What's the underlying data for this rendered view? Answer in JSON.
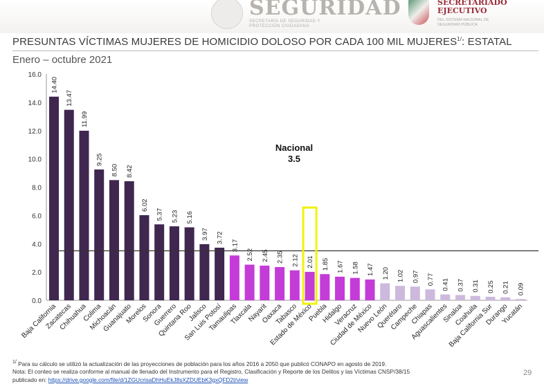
{
  "header": {
    "logo_left": "SEGURIDAD",
    "logo_left_sub": "SECRETARÍA DE SEGURIDAD Y PROTECCIÓN CIUDADANA",
    "logo_right": "SECRETARIADO EJECUTIVO",
    "logo_right_sub": "DEL SISTEMA NACIONAL DE SEGURIDAD PÚBLICA"
  },
  "title": "PRESUNTAS VÍCTIMAS MUJERES DE HOMICIDIO DOLOSO POR CADA 100 MIL MUJERES",
  "title_sup": "1/",
  "title_tail": ": ESTATAL",
  "subtitle": "Enero – octubre 2021",
  "chart_data": {
    "type": "bar",
    "categories": [
      "Baja California",
      "Zacatecas",
      "Chihuahua",
      "Colima",
      "Michoacán",
      "Guanajuato",
      "Morelos",
      "Sonora",
      "Guerrero",
      "Quintana Roo",
      "Jalisco",
      "San Luis Potosí",
      "Tamaulipas",
      "Tlaxcala",
      "Nayarit",
      "Oaxaca",
      "Tabasco",
      "Estado de México",
      "Puebla",
      "Hidalgo",
      "Veracruz",
      "Ciudad de México",
      "Nuevo León",
      "Querétaro",
      "Campeche",
      "Chiapas",
      "Aguascalientes",
      "Sinaloa",
      "Coahuila",
      "Baja California Sur",
      "Durango",
      "Yucatán"
    ],
    "values": [
      14.4,
      13.47,
      11.99,
      9.25,
      8.5,
      8.42,
      6.02,
      5.37,
      5.23,
      5.16,
      3.97,
      3.72,
      3.17,
      2.52,
      2.45,
      2.35,
      2.12,
      2.01,
      1.85,
      1.67,
      1.58,
      1.47,
      1.2,
      1.02,
      0.97,
      0.77,
      0.41,
      0.37,
      0.31,
      0.25,
      0.21,
      0.09
    ],
    "ylim": [
      0,
      16
    ],
    "yticks": [
      "0.0",
      "2.0",
      "4.0",
      "6.0",
      "8.0",
      "10.0",
      "12.0",
      "14.0",
      "16.0"
    ],
    "reference_line": {
      "label": "Nacional",
      "value_label": "3.5",
      "value": 3.5
    },
    "highlight": "Estado de México",
    "colors": {
      "high": "#3f2750",
      "mid": "#c43cd8",
      "low": "#cdb9dd",
      "highlight": "#f2f20a",
      "line": "#333333"
    },
    "grid": false
  },
  "footnote": "Para su cálculo se utilizó la actualización de las proyecciones de población para los años 2016 a 2050 que publicó CONAPO en agosto de 2019.",
  "footnote_sup": "1/",
  "note": "Nota: El conteo se realiza conforme al manual de llenado del Instrumento para el Registro, Clasificación y Reporte de los Delitos y las Víctimas CNSP/38/15",
  "note_published": "publicado en: ",
  "note_link": "https://drive.google.com/file/d/1ZGUcrisaDhHuEkJ8sXZDUEbK3gxQFD2t/view",
  "page_number": "29"
}
